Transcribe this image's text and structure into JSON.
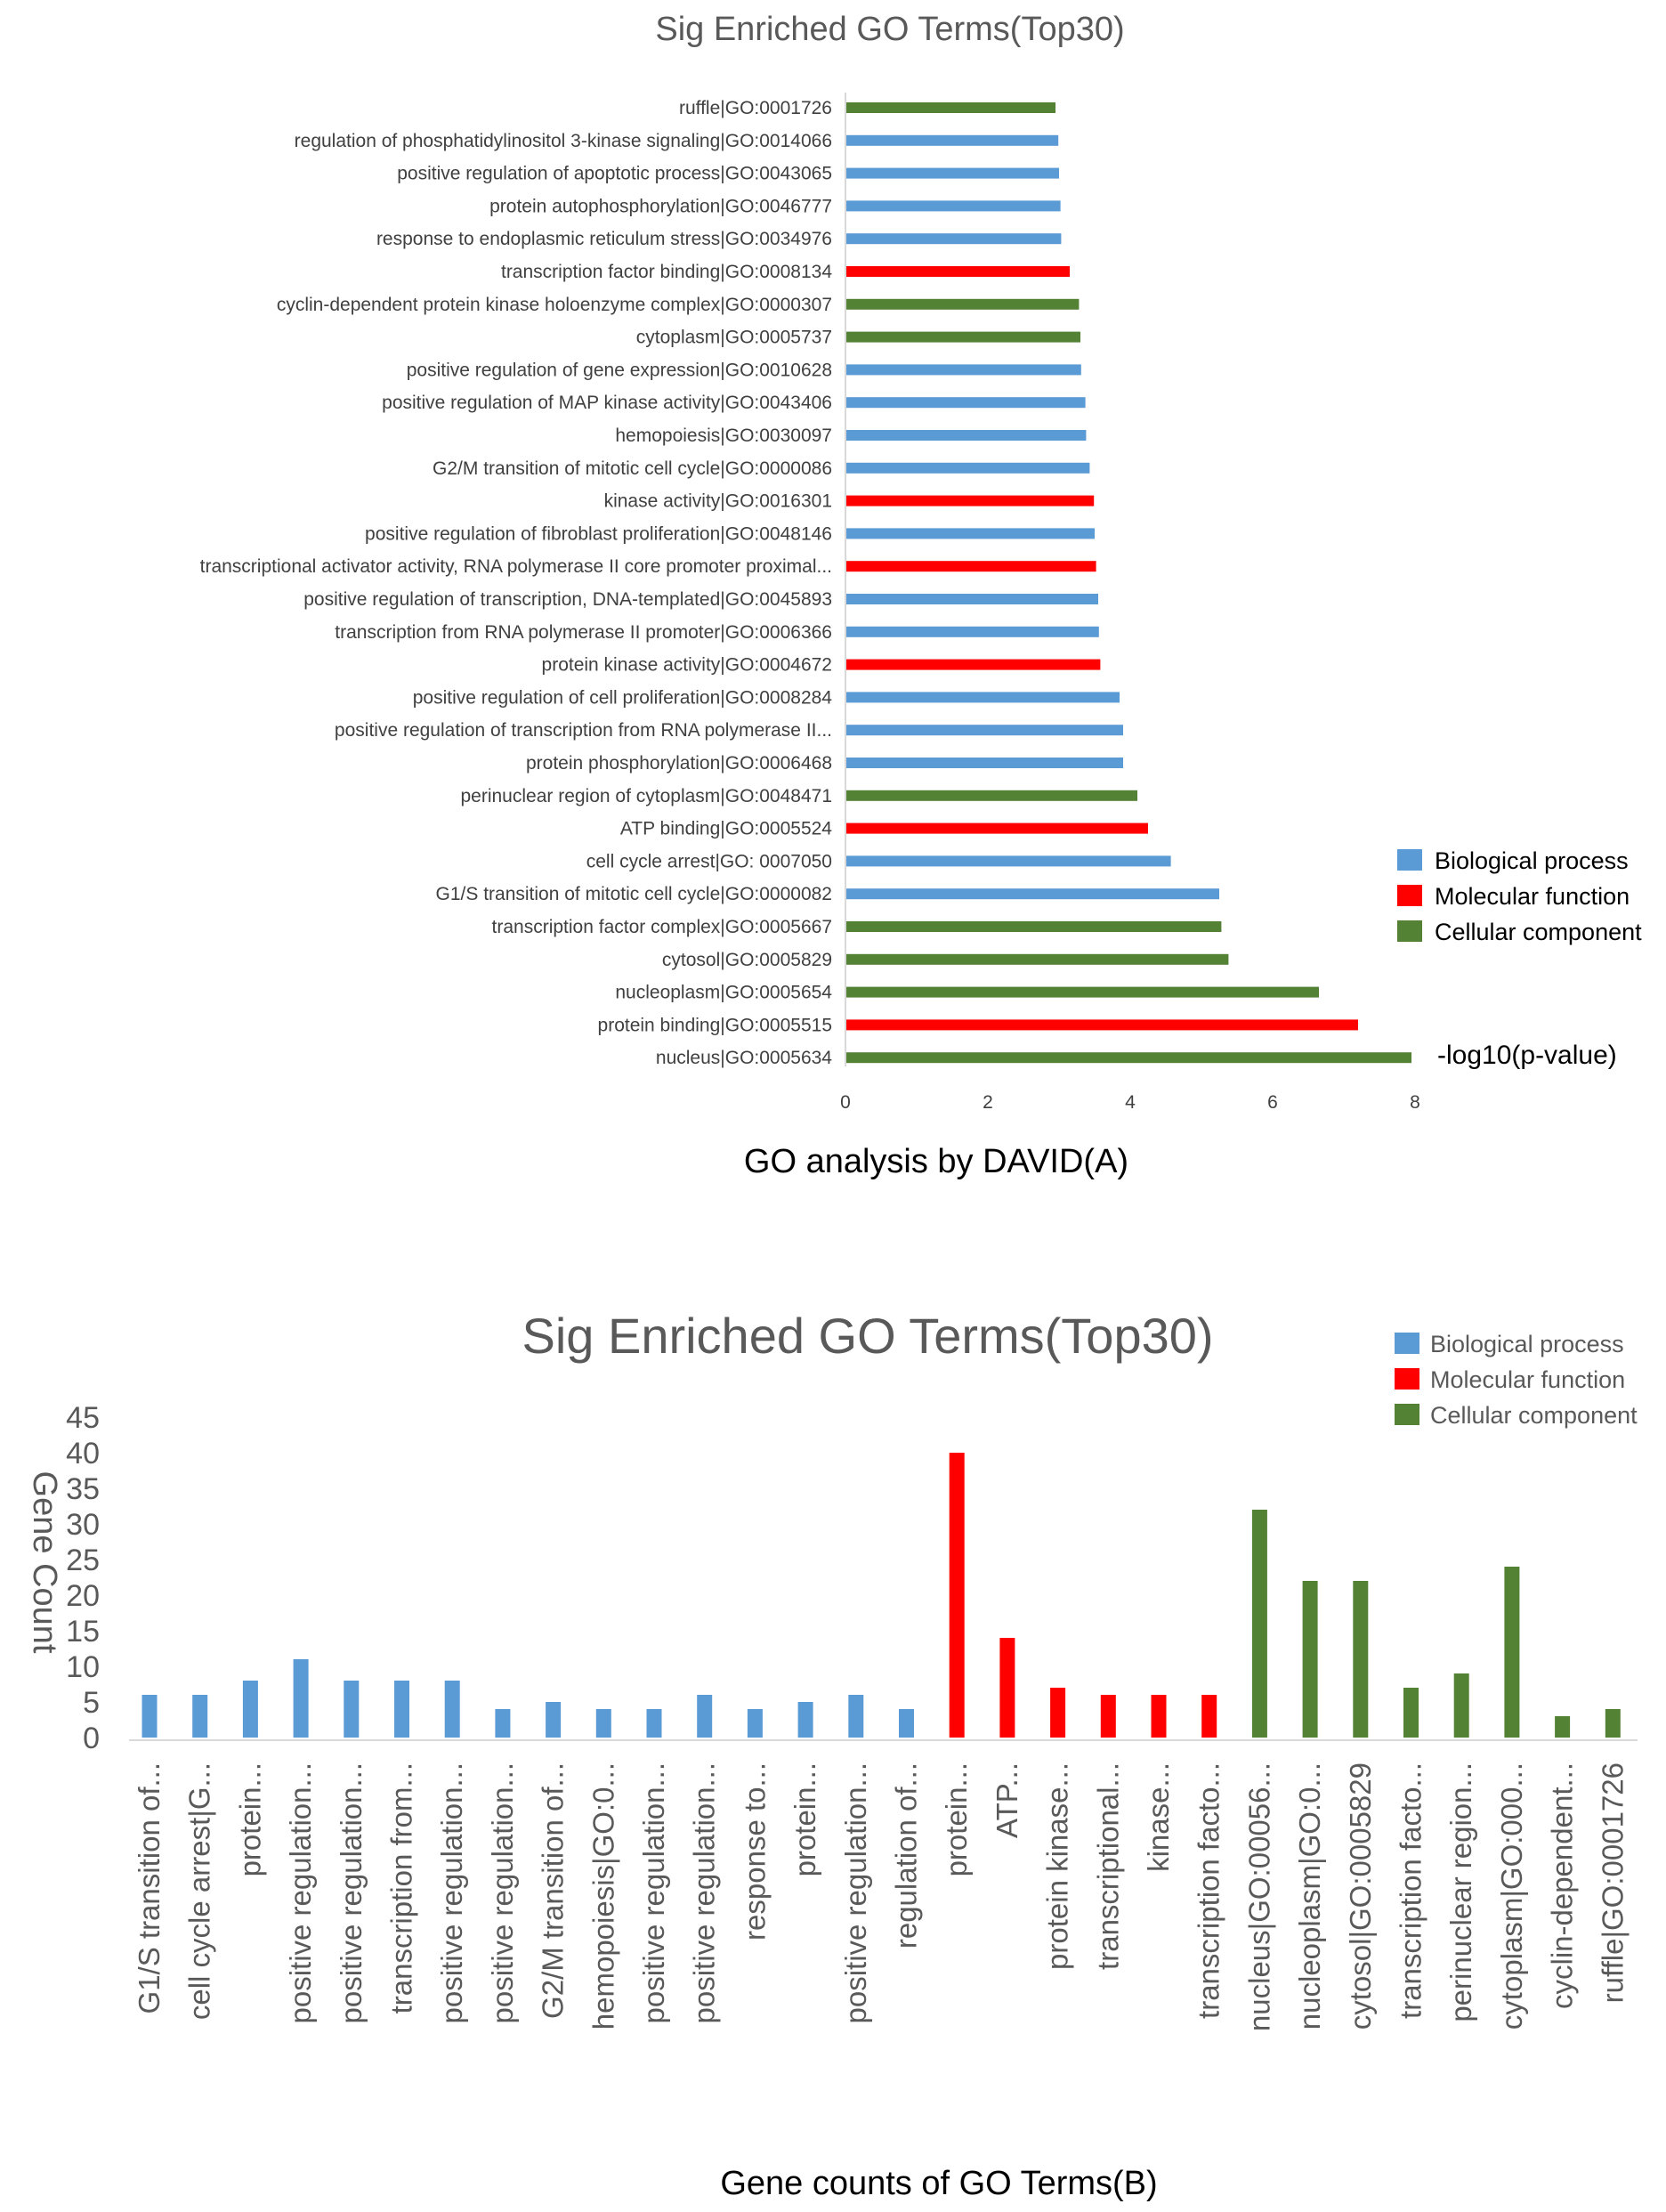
{
  "colors": {
    "biological": "#5B9BD5",
    "molecular": "#FF0000",
    "cellular": "#548235",
    "axis": "#D9D9D9",
    "label": "#404040",
    "title": "#595959"
  },
  "chart_data": [
    {
      "type": "bar",
      "orientation": "horizontal",
      "title": "Sig Enriched GO Terms(Top30)",
      "caption": "GO analysis by DAVID(A)",
      "xlabel": "-log10(p-value)",
      "ylabel": "",
      "xlim": [
        0,
        8
      ],
      "xticks": [
        "0",
        "2",
        "4",
        "6",
        "8"
      ],
      "legend": {
        "position": "right",
        "entries": [
          {
            "category": "biological",
            "label": "Biological process"
          },
          {
            "category": "molecular",
            "label": "Molecular function"
          },
          {
            "category": "cellular",
            "label": "Cellular component"
          }
        ]
      },
      "categories": [
        "ruffle|GO:0001726",
        "regulation of phosphatidylinositol 3-kinase signaling|GO:0014066",
        "positive regulation of apoptotic process|GO:0043065",
        "protein autophosphorylation|GO:0046777",
        "response to endoplasmic reticulum stress|GO:0034976",
        "transcription factor binding|GO:0008134",
        "cyclin-dependent protein kinase holoenzyme complex|GO:0000307",
        "cytoplasm|GO:0005737",
        "positive regulation of gene expression|GO:0010628",
        "positive regulation of MAP kinase activity|GO:0043406",
        "hemopoiesis|GO:0030097",
        "G2/M transition of mitotic cell cycle|GO:0000086",
        "kinase activity|GO:0016301",
        "positive regulation of fibroblast proliferation|GO:0048146",
        "transcriptional activator activity, RNA polymerase II core promoter proximal...",
        "positive regulation of transcription, DNA-templated|GO:0045893",
        "transcription from RNA polymerase II promoter|GO:0006366",
        "protein kinase activity|GO:0004672",
        "positive regulation of cell proliferation|GO:0008284",
        "positive regulation of transcription from RNA polymerase II...",
        "protein phosphorylation|GO:0006468",
        "perinuclear region of cytoplasm|GO:0048471",
        "ATP binding|GO:0005524",
        "cell cycle arrest|GO:   0007050",
        "G1/S transition of mitotic cell cycle|GO:0000082",
        "transcription factor complex|GO:0005667",
        "cytosol|GO:0005829",
        "nucleoplasm|GO:0005654",
        "protein binding|GO:0005515",
        "nucleus|GO:0005634"
      ],
      "values": [
        2.95,
        2.99,
        3.0,
        3.02,
        3.03,
        3.15,
        3.28,
        3.3,
        3.31,
        3.37,
        3.38,
        3.43,
        3.49,
        3.5,
        3.52,
        3.55,
        3.56,
        3.58,
        3.85,
        3.9,
        3.9,
        4.1,
        4.25,
        4.57,
        5.25,
        5.28,
        5.38,
        6.65,
        7.2,
        7.95
      ],
      "groups": [
        "cellular",
        "biological",
        "biological",
        "biological",
        "biological",
        "molecular",
        "cellular",
        "cellular",
        "biological",
        "biological",
        "biological",
        "biological",
        "molecular",
        "biological",
        "molecular",
        "biological",
        "biological",
        "molecular",
        "biological",
        "biological",
        "biological",
        "cellular",
        "molecular",
        "biological",
        "biological",
        "cellular",
        "cellular",
        "cellular",
        "molecular",
        "cellular"
      ]
    },
    {
      "type": "bar",
      "orientation": "vertical",
      "title": "Sig Enriched GO Terms(Top30)",
      "caption": "Gene counts of GO Terms(B)",
      "xlabel": "",
      "ylabel": "Gene Count",
      "ylim": [
        0,
        45
      ],
      "yticks": [
        "0",
        "5",
        "10",
        "15",
        "20",
        "25",
        "30",
        "35",
        "40",
        "45"
      ],
      "legend": {
        "position": "top-right",
        "entries": [
          {
            "category": "biological",
            "label": "Biological process"
          },
          {
            "category": "molecular",
            "label": "Molecular function"
          },
          {
            "category": "cellular",
            "label": "Cellular component"
          }
        ]
      },
      "categories": [
        "G1/S transition of...",
        "cell cycle arrest|G...",
        "protein...",
        "positive regulation...",
        "positive regulation...",
        "transcription from...",
        "positive regulation...",
        "positive regulation...",
        "G2/M transition of...",
        "hemopoiesis|GO:0...",
        "positive regulation...",
        "positive regulation...",
        "response to...",
        "protein...",
        "positive regulation...",
        "regulation of...",
        "protein...",
        "ATP...",
        "protein kinase...",
        "transcriptional...",
        "kinase...",
        "transcription facto...",
        "nucleus|GO:00056...",
        "nucleoplasm|GO:0...",
        "cytosol|GO:0005829",
        "transcription facto...",
        "perinuclear region...",
        "cytoplasm|GO:000...",
        "cyclin-dependent...",
        "ruffle|GO:0001726"
      ],
      "values": [
        6,
        6,
        8,
        11,
        8,
        8,
        8,
        4,
        5,
        4,
        4,
        6,
        4,
        5,
        6,
        4,
        40,
        14,
        7,
        6,
        6,
        6,
        32,
        22,
        22,
        7,
        9,
        24,
        3,
        4
      ],
      "groups": [
        "biological",
        "biological",
        "biological",
        "biological",
        "biological",
        "biological",
        "biological",
        "biological",
        "biological",
        "biological",
        "biological",
        "biological",
        "biological",
        "biological",
        "biological",
        "biological",
        "molecular",
        "molecular",
        "molecular",
        "molecular",
        "molecular",
        "molecular",
        "cellular",
        "cellular",
        "cellular",
        "cellular",
        "cellular",
        "cellular",
        "cellular",
        "cellular"
      ]
    }
  ]
}
